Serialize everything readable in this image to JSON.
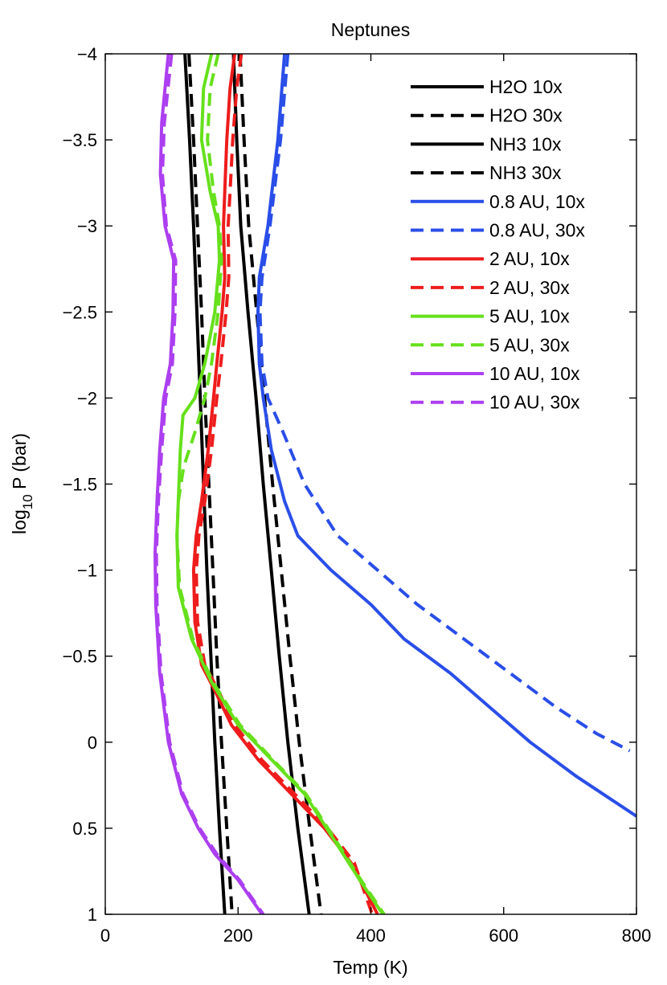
{
  "chart_data": {
    "type": "line",
    "title": "Neptunes",
    "xlabel": "Temp (K)",
    "ylabel": {
      "base": "log",
      "sub": "10",
      "rest": " P (bar)"
    },
    "xlim": [
      0,
      800
    ],
    "ylim": [
      -4,
      1
    ],
    "y_reversed": true,
    "grid": false,
    "legend_position": "top-right",
    "xticks": [
      0,
      200,
      400,
      600,
      800
    ],
    "xtick_labels": [
      "0",
      "200",
      "400",
      "600",
      "800"
    ],
    "yticks": [
      -4,
      -3.5,
      -3,
      -2.5,
      -2,
      -1.5,
      -1,
      -0.5,
      0,
      0.5,
      1
    ],
    "ytick_labels": [
      "−4",
      "−3.5",
      "−3",
      "−2.5",
      "−2",
      "−1.5",
      "−1",
      "−0.5",
      "0",
      "0.5",
      "1"
    ],
    "series": [
      {
        "name": "H2O 10x",
        "color": "#000000",
        "dash": "solid",
        "points": [
          [
            120,
            -4
          ],
          [
            127,
            -3.5
          ],
          [
            133,
            -3
          ],
          [
            138,
            -2.5
          ],
          [
            143,
            -2
          ],
          [
            148,
            -1.5
          ],
          [
            153,
            -1
          ],
          [
            159,
            -0.5
          ],
          [
            165,
            0
          ],
          [
            172,
            0.5
          ],
          [
            180,
            1
          ]
        ]
      },
      {
        "name": "H2O 30x",
        "color": "#000000",
        "dash": "dashed",
        "points": [
          [
            126,
            -4
          ],
          [
            133,
            -3.5
          ],
          [
            139,
            -3
          ],
          [
            145,
            -2.5
          ],
          [
            150,
            -2
          ],
          [
            156,
            -1.5
          ],
          [
            162,
            -1
          ],
          [
            168,
            -0.5
          ],
          [
            175,
            0
          ],
          [
            183,
            0.5
          ],
          [
            191,
            1
          ]
        ]
      },
      {
        "name": "NH3 10x",
        "color": "#000000",
        "dash": "solid",
        "points": [
          [
            193,
            -4
          ],
          [
            198,
            -3.5
          ],
          [
            204,
            -3
          ],
          [
            215,
            -2.5
          ],
          [
            227,
            -2
          ],
          [
            238,
            -1.5
          ],
          [
            250,
            -1
          ],
          [
            262,
            -0.5
          ],
          [
            275,
            0
          ],
          [
            290,
            0.5
          ],
          [
            307,
            1
          ]
        ]
      },
      {
        "name": "NH3 30x",
        "color": "#000000",
        "dash": "dashed",
        "points": [
          [
            203,
            -4
          ],
          [
            209,
            -3.5
          ],
          [
            216,
            -3
          ],
          [
            228,
            -2.5
          ],
          [
            240,
            -2
          ],
          [
            252,
            -1.5
          ],
          [
            265,
            -1
          ],
          [
            278,
            -0.5
          ],
          [
            292,
            0
          ],
          [
            308,
            0.5
          ],
          [
            325,
            1
          ]
        ]
      },
      {
        "name": "0.8 AU, 10x",
        "color": "#2a4ee8",
        "dash": "solid",
        "points": [
          [
            270,
            -4
          ],
          [
            260,
            -3.5
          ],
          [
            245,
            -3
          ],
          [
            232,
            -2.7
          ],
          [
            230,
            -2.5
          ],
          [
            232,
            -2.2
          ],
          [
            238,
            -2
          ],
          [
            250,
            -1.7
          ],
          [
            270,
            -1.4
          ],
          [
            290,
            -1.2
          ],
          [
            340,
            -1
          ],
          [
            400,
            -0.8
          ],
          [
            450,
            -0.6
          ],
          [
            520,
            -0.4
          ],
          [
            580,
            -0.2
          ],
          [
            640,
            0
          ],
          [
            710,
            0.2
          ],
          [
            800,
            0.43
          ]
        ]
      },
      {
        "name": "0.8 AU, 30x",
        "color": "#2a4ee8",
        "dash": "dashed",
        "points": [
          [
            275,
            -4
          ],
          [
            264,
            -3.5
          ],
          [
            248,
            -3
          ],
          [
            236,
            -2.7
          ],
          [
            233,
            -2.5
          ],
          [
            236,
            -2.2
          ],
          [
            245,
            -2
          ],
          [
            268,
            -1.8
          ],
          [
            300,
            -1.5
          ],
          [
            350,
            -1.2
          ],
          [
            410,
            -1
          ],
          [
            470,
            -0.8
          ],
          [
            540,
            -0.6
          ],
          [
            610,
            -0.4
          ],
          [
            680,
            -0.2
          ],
          [
            740,
            -0.05
          ],
          [
            790,
            0.05
          ]
        ]
      },
      {
        "name": "2 AU, 10x",
        "color": "#ee1c1c",
        "dash": "solid",
        "points": [
          [
            195,
            -4
          ],
          [
            188,
            -3.8
          ],
          [
            183,
            -3.5
          ],
          [
            180,
            -3.2
          ],
          [
            178,
            -3
          ],
          [
            180,
            -2.7
          ],
          [
            176,
            -2.5
          ],
          [
            168,
            -2.2
          ],
          [
            163,
            -2
          ],
          [
            155,
            -1.7
          ],
          [
            145,
            -1.4
          ],
          [
            137,
            -1.2
          ],
          [
            133,
            -1
          ],
          [
            135,
            -0.7
          ],
          [
            145,
            -0.45
          ],
          [
            165,
            -0.3
          ],
          [
            190,
            -0.1
          ],
          [
            230,
            0.1
          ],
          [
            280,
            0.3
          ],
          [
            330,
            0.5
          ],
          [
            370,
            0.7
          ],
          [
            410,
            1
          ]
        ]
      },
      {
        "name": "2 AU, 30x",
        "color": "#ee1c1c",
        "dash": "dashed",
        "points": [
          [
            205,
            -4
          ],
          [
            198,
            -3.8
          ],
          [
            192,
            -3.5
          ],
          [
            188,
            -3.2
          ],
          [
            185,
            -3
          ],
          [
            186,
            -2.7
          ],
          [
            182,
            -2.5
          ],
          [
            174,
            -2.2
          ],
          [
            168,
            -2
          ],
          [
            160,
            -1.7
          ],
          [
            150,
            -1.4
          ],
          [
            141,
            -1.2
          ],
          [
            137,
            -1
          ],
          [
            139,
            -0.7
          ],
          [
            150,
            -0.45
          ],
          [
            170,
            -0.3
          ],
          [
            195,
            -0.1
          ],
          [
            235,
            0.1
          ],
          [
            285,
            0.3
          ],
          [
            335,
            0.5
          ],
          [
            375,
            0.7
          ],
          [
            402,
            1
          ]
        ]
      },
      {
        "name": "5 AU, 10x",
        "color": "#66e01c",
        "dash": "solid",
        "points": [
          [
            160,
            -4
          ],
          [
            148,
            -3.8
          ],
          [
            145,
            -3.5
          ],
          [
            158,
            -3.2
          ],
          [
            170,
            -3
          ],
          [
            172,
            -2.8
          ],
          [
            165,
            -2.5
          ],
          [
            150,
            -2.2
          ],
          [
            135,
            -2
          ],
          [
            117,
            -1.9
          ],
          [
            113,
            -1.7
          ],
          [
            111,
            -1.5
          ],
          [
            108,
            -1.2
          ],
          [
            110,
            -0.9
          ],
          [
            130,
            -0.6
          ],
          [
            160,
            -0.35
          ],
          [
            200,
            -0.1
          ],
          [
            250,
            0.1
          ],
          [
            300,
            0.3
          ],
          [
            350,
            0.6
          ],
          [
            383,
            0.8
          ],
          [
            418,
            1
          ]
        ]
      },
      {
        "name": "5 AU, 30x",
        "color": "#66e01c",
        "dash": "dashed",
        "points": [
          [
            170,
            -4
          ],
          [
            158,
            -3.8
          ],
          [
            154,
            -3.5
          ],
          [
            163,
            -3.2
          ],
          [
            172,
            -3
          ],
          [
            175,
            -2.8
          ],
          [
            170,
            -2.5
          ],
          [
            160,
            -2.2
          ],
          [
            150,
            -2
          ],
          [
            135,
            -1.8
          ],
          [
            118,
            -1.6
          ],
          [
            110,
            -1.4
          ],
          [
            108,
            -1.2
          ],
          [
            112,
            -0.9
          ],
          [
            132,
            -0.6
          ],
          [
            162,
            -0.35
          ],
          [
            203,
            -0.1
          ],
          [
            252,
            0.1
          ],
          [
            302,
            0.3
          ],
          [
            352,
            0.6
          ],
          [
            385,
            0.8
          ],
          [
            420,
            1
          ]
        ]
      },
      {
        "name": "10 AU, 10x",
        "color": "#ac3ff0",
        "dash": "solid",
        "points": [
          [
            95,
            -4
          ],
          [
            85,
            -3.6
          ],
          [
            83,
            -3.3
          ],
          [
            90,
            -3
          ],
          [
            103,
            -2.8
          ],
          [
            102,
            -2.5
          ],
          [
            98,
            -2.2
          ],
          [
            88,
            -2
          ],
          [
            82,
            -1.7
          ],
          [
            78,
            -1.4
          ],
          [
            75,
            -1.1
          ],
          [
            76,
            -0.8
          ],
          [
            82,
            -0.4
          ],
          [
            95,
            0
          ],
          [
            115,
            0.3
          ],
          [
            140,
            0.5
          ],
          [
            165,
            0.65
          ],
          [
            200,
            0.8
          ],
          [
            236,
            1
          ]
        ]
      },
      {
        "name": "10 AU, 30x",
        "color": "#ac3ff0",
        "dash": "dashed",
        "points": [
          [
            100,
            -4
          ],
          [
            89,
            -3.6
          ],
          [
            86,
            -3.3
          ],
          [
            92,
            -3
          ],
          [
            106,
            -2.8
          ],
          [
            105,
            -2.5
          ],
          [
            101,
            -2.2
          ],
          [
            91,
            -2
          ],
          [
            85,
            -1.7
          ],
          [
            80,
            -1.4
          ],
          [
            77,
            -1.1
          ],
          [
            78,
            -0.8
          ],
          [
            84,
            -0.4
          ],
          [
            97,
            0
          ],
          [
            117,
            0.3
          ],
          [
            142,
            0.5
          ],
          [
            168,
            0.65
          ],
          [
            202,
            0.8
          ],
          [
            238,
            1
          ]
        ]
      }
    ]
  }
}
